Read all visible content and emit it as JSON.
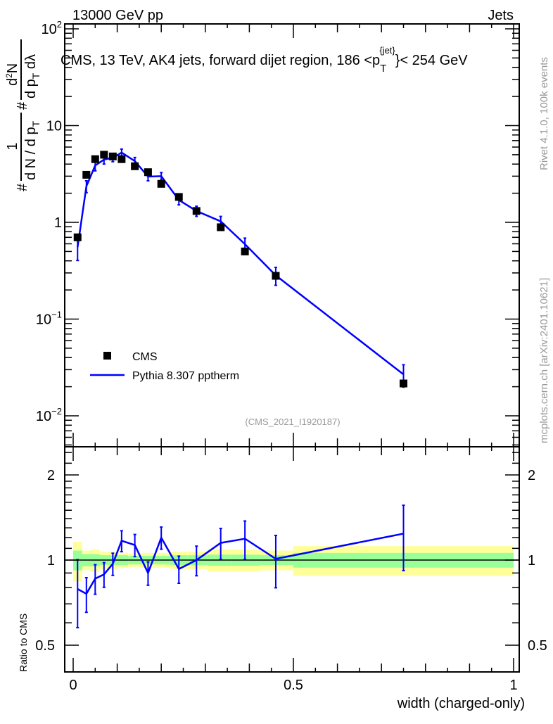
{
  "header": {
    "left": "13000 GeV pp",
    "right": "Jets"
  },
  "side": {
    "rivet": "Rivet 4.1.0,  100k events",
    "mcplots": "mcplots.cern.ch [arXiv:2401.10621]"
  },
  "chart_data": [
    {
      "type": "scatter",
      "title_parts": {
        "main": "CMS, 13 TeV, AK4 jets, forward dijet region, 186 <p",
        "sub": "T",
        "sup": "{jet}",
        "end": "}< 254 GeV"
      },
      "ylabel_parts": {
        "frac1_num": "1",
        "frac1_den": "d N / d p",
        "frac1_den_sub": "T",
        "frac2_num": "d",
        "frac2_num_sup": "2",
        "frac2_num_end": "N",
        "frac2_den": "d p",
        "frac2_den_sub": "T",
        "frac2_den_end": " dλ",
        "hash": "#"
      },
      "yscale": "log",
      "ylim": [
        0.005,
        120
      ],
      "xlim": [
        -0.02,
        1.01
      ],
      "ytick_labels": [
        {
          "v": 0.01,
          "base": "10",
          "exp": "−2"
        },
        {
          "v": 0.1,
          "base": "10",
          "exp": "−1"
        },
        {
          "v": 1,
          "base": "1",
          "exp": ""
        },
        {
          "v": 10,
          "base": "10",
          "exp": ""
        },
        {
          "v": 100,
          "base": "10",
          "exp": "2"
        }
      ],
      "analysis_label": "(CMS_2021_I1920187)",
      "legend": [
        {
          "name": "CMS",
          "marker": "square",
          "color": "#000000"
        },
        {
          "name": "Pythia 8.307 pptherm",
          "marker": "line",
          "color": "#0000ff"
        }
      ],
      "legend_position": "bottom-left",
      "x": [
        0.01,
        0.03,
        0.05,
        0.07,
        0.09,
        0.11,
        0.14,
        0.17,
        0.2,
        0.24,
        0.28,
        0.335,
        0.39,
        0.46,
        0.75
      ],
      "bin_edges": [
        0,
        0.02,
        0.04,
        0.06,
        0.08,
        0.1,
        0.125,
        0.155,
        0.185,
        0.22,
        0.26,
        0.305,
        0.36,
        0.425,
        0.5,
        1.0
      ],
      "series": [
        {
          "name": "CMS",
          "color": "#000000",
          "values": [
            0.7,
            3.1,
            4.5,
            5.0,
            4.8,
            4.5,
            3.8,
            3.3,
            2.5,
            1.83,
            1.31,
            0.89,
            0.5,
            0.28,
            0.0216
          ]
        },
        {
          "name": "Pythia 8.307 pptherm",
          "color": "#0000ff",
          "ratio": [
            0.79,
            0.76,
            0.86,
            0.89,
            0.97,
            1.17,
            1.13,
            0.9,
            1.2,
            0.93,
            1.0,
            1.15,
            1.19,
            1.01,
            1.24
          ],
          "rel_err": [
            0.27,
            0.14,
            0.12,
            0.1,
            0.09,
            0.085,
            0.09,
            0.095,
            0.09,
            0.11,
            0.12,
            0.125,
            0.155,
            0.21,
            0.26
          ]
        }
      ]
    },
    {
      "type": "line",
      "ylabel": "Ratio to CMS",
      "xlabel": "width (charged-only)",
      "yscale": "log",
      "ylim": [
        0.42,
        2.4
      ],
      "ytick_labels": [
        "0.5",
        "1",
        "2"
      ],
      "ytick_values": [
        0.5,
        1,
        2
      ],
      "xtick_labels": [
        "0",
        "0.5",
        "1"
      ],
      "xtick_values": [
        0,
        0.5,
        1
      ],
      "band_colors": {
        "inner": "#99ff99",
        "outer": "#ffff99"
      },
      "band_inner": [
        0.08,
        0.05,
        0.05,
        0.04,
        0.04,
        0.04,
        0.035,
        0.035,
        0.035,
        0.04,
        0.04,
        0.045,
        0.045,
        0.04,
        0.06
      ],
      "band_outer": [
        0.16,
        0.08,
        0.09,
        0.07,
        0.07,
        0.06,
        0.055,
        0.06,
        0.06,
        0.07,
        0.07,
        0.09,
        0.09,
        0.08,
        0.12
      ]
    }
  ]
}
